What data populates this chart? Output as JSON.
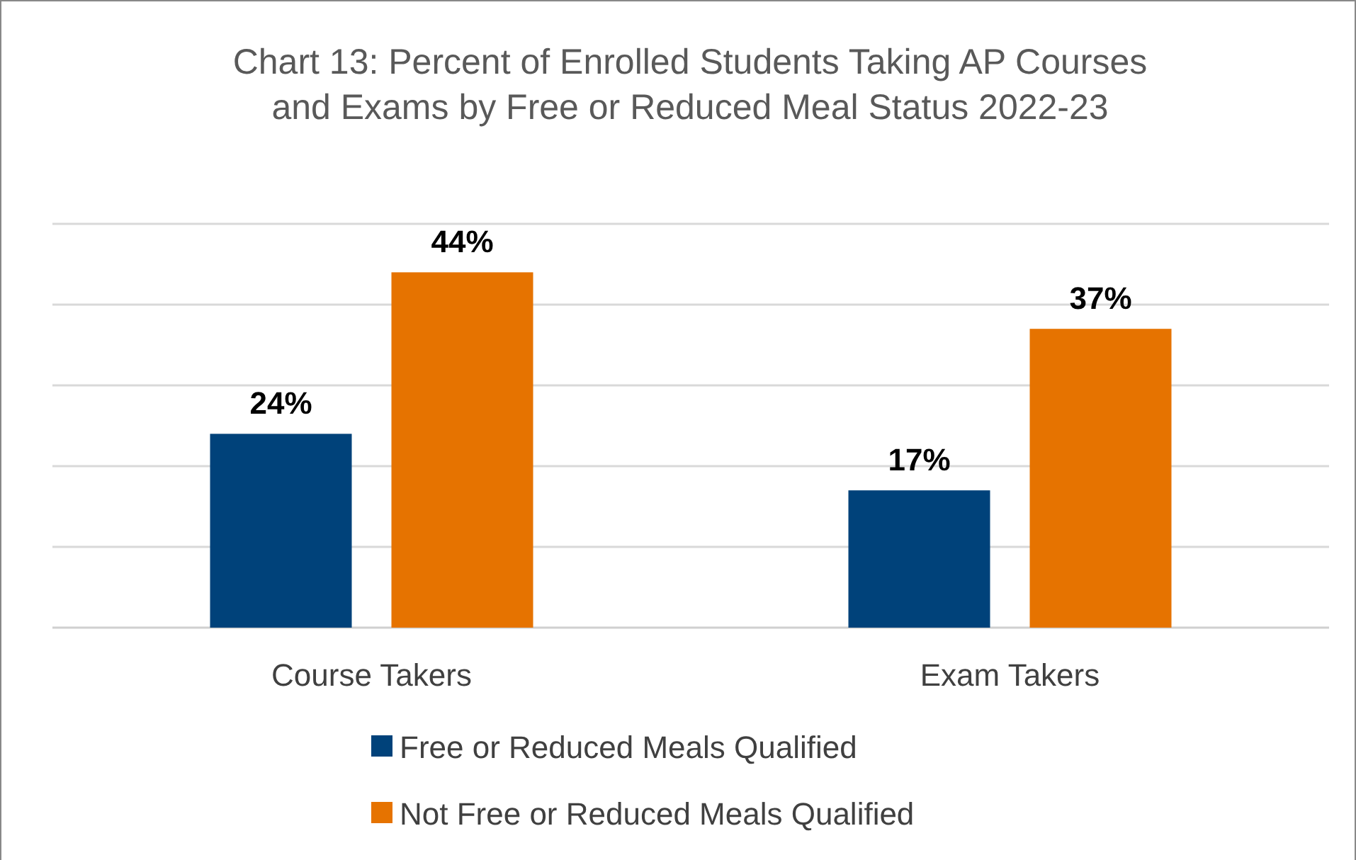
{
  "chart_data": {
    "type": "bar",
    "title": "Chart 13: Percent of Enrolled Students Taking AP Courses and Exams by Free or Reduced Meal Status 2022-23",
    "categories": [
      "Course Takers",
      "Exam Takers"
    ],
    "series": [
      {
        "name": "Free or Reduced Meals Qualified",
        "color": "#00427a",
        "values": [
          24,
          17
        ],
        "value_labels": [
          "24%",
          "17%"
        ]
      },
      {
        "name": "Not Free or Reduced Meals Qualified",
        "color": "#e67300",
        "values": [
          44,
          37
        ],
        "value_labels": [
          "44%",
          "37%"
        ]
      }
    ],
    "ylim": [
      0,
      50
    ],
    "yticks": [
      {
        "value": 0,
        "label": null
      },
      {
        "value": 10,
        "label": null
      },
      {
        "value": 20,
        "label": null
      },
      {
        "value": 30,
        "label": null
      },
      {
        "value": 40,
        "label": null
      },
      {
        "value": 50,
        "label": null
      }
    ],
    "tick_labels": "x",
    "grid": "y",
    "legend": "bottom"
  }
}
